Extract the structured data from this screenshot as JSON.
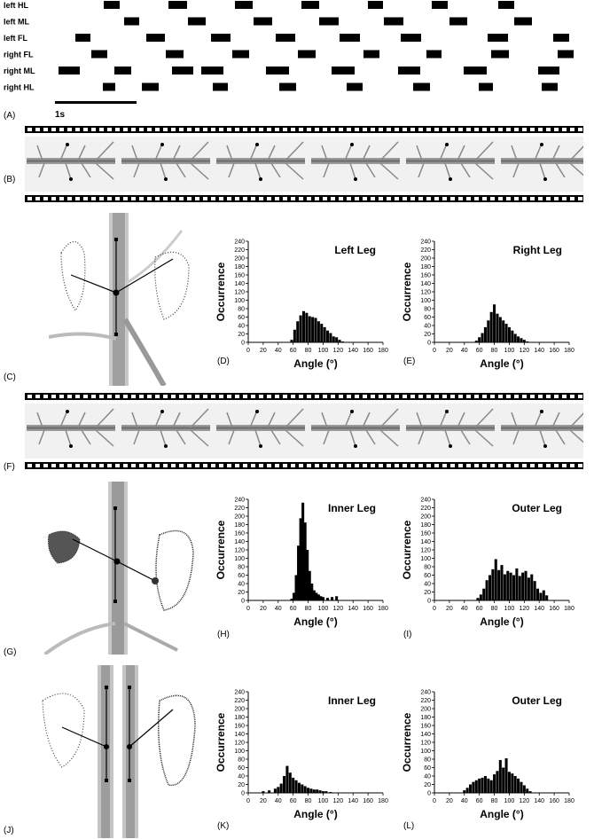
{
  "panels": {
    "A": "(A)",
    "B": "(B)",
    "C": "(C)",
    "D": "(D)",
    "E": "(E)",
    "F": "(F)",
    "G": "(G)",
    "H": "(H)",
    "I": "(I)",
    "J": "(J)",
    "K": "(K)",
    "L": "(L)"
  },
  "gait": {
    "rows": [
      {
        "label": "left HL",
        "bars": [
          [
            117,
            135
          ],
          [
            190,
            211
          ],
          [
            265,
            285
          ],
          [
            340,
            360
          ],
          [
            415,
            432
          ],
          [
            487,
            505
          ],
          [
            562,
            580
          ]
        ]
      },
      {
        "label": "left ML",
        "bars": [
          [
            140,
            157
          ],
          [
            212,
            232
          ],
          [
            286,
            307
          ],
          [
            360,
            382
          ],
          [
            433,
            455
          ],
          [
            507,
            527
          ],
          [
            580,
            600
          ]
        ]
      },
      {
        "label": "left FL",
        "bars": [
          [
            85,
            102
          ],
          [
            165,
            186
          ],
          [
            238,
            260
          ],
          [
            311,
            333
          ],
          [
            383,
            406
          ],
          [
            452,
            475
          ],
          [
            550,
            573
          ],
          [
            624,
            642
          ]
        ]
      },
      {
        "label": "right FL",
        "bars": [
          [
            103,
            121
          ],
          [
            187,
            207
          ],
          [
            262,
            281
          ],
          [
            336,
            356
          ],
          [
            410,
            428
          ],
          [
            481,
            498
          ],
          [
            554,
            574
          ],
          [
            629,
            647
          ]
        ]
      },
      {
        "label": "right ML",
        "bars": [
          [
            66,
            90
          ],
          [
            129,
            148
          ],
          [
            194,
            218
          ],
          [
            227,
            252
          ],
          [
            300,
            326
          ],
          [
            374,
            400
          ],
          [
            449,
            474
          ],
          [
            523,
            549
          ],
          [
            607,
            631
          ]
        ]
      },
      {
        "label": "right HL",
        "bars": [
          [
            116,
            130
          ],
          [
            160,
            179
          ],
          [
            240,
            257
          ],
          [
            315,
            334
          ],
          [
            391,
            409
          ],
          [
            466,
            485
          ],
          [
            540,
            556
          ],
          [
            611,
            629
          ]
        ]
      }
    ],
    "scale_label": "1s"
  },
  "chart_data": [
    {
      "id": "D",
      "type": "bar",
      "title": "Left Leg",
      "xlabel": "Angle (°)",
      "ylabel": "Occurrence",
      "xlim": [
        0,
        180
      ],
      "ylim": [
        0,
        240
      ],
      "xticks": [
        "0",
        "20",
        "40",
        "60",
        "80",
        "100",
        "120",
        "140",
        "160",
        "180"
      ],
      "yticks": [
        "0",
        "20",
        "40",
        "60",
        "80",
        "100",
        "120",
        "140",
        "160",
        "180",
        "200",
        "220",
        "240"
      ],
      "x": [
        58,
        62,
        66,
        70,
        74,
        78,
        82,
        86,
        90,
        94,
        98,
        102,
        106,
        110,
        114,
        118,
        122,
        126
      ],
      "values": [
        6,
        30,
        50,
        64,
        74,
        70,
        62,
        60,
        58,
        50,
        44,
        36,
        28,
        22,
        14,
        12,
        6,
        2
      ]
    },
    {
      "id": "E",
      "type": "bar",
      "title": "Right Leg",
      "xlabel": "Angle (°)",
      "ylabel": "Occurrence",
      "xlim": [
        0,
        180
      ],
      "ylim": [
        0,
        240
      ],
      "xticks": [
        "0",
        "20",
        "40",
        "60",
        "80",
        "100",
        "120",
        "140",
        "160",
        "180"
      ],
      "yticks": [
        "0",
        "20",
        "40",
        "60",
        "80",
        "100",
        "120",
        "140",
        "160",
        "180",
        "200",
        "220",
        "240"
      ],
      "x": [
        56,
        60,
        64,
        68,
        72,
        76,
        80,
        84,
        88,
        92,
        96,
        100,
        104,
        108,
        112,
        116,
        120,
        124
      ],
      "values": [
        4,
        12,
        22,
        36,
        52,
        72,
        90,
        68,
        60,
        52,
        44,
        36,
        28,
        20,
        14,
        10,
        6,
        2
      ]
    },
    {
      "id": "H",
      "type": "bar",
      "title": "Inner Leg",
      "xlabel": "Angle (°)",
      "ylabel": "Occurrence",
      "xlim": [
        0,
        180
      ],
      "ylim": [
        0,
        240
      ],
      "xticks": [
        "0",
        "20",
        "40",
        "60",
        "80",
        "100",
        "120",
        "140",
        "160",
        "180"
      ],
      "yticks": [
        "0",
        "20",
        "40",
        "60",
        "80",
        "100",
        "120",
        "140",
        "160",
        "180",
        "200",
        "220",
        "240"
      ],
      "x": [
        58,
        61,
        64,
        67,
        70,
        73,
        76,
        79,
        82,
        85,
        88,
        91,
        94,
        97,
        100,
        106,
        112,
        118
      ],
      "values": [
        4,
        18,
        60,
        130,
        195,
        232,
        185,
        120,
        70,
        40,
        24,
        18,
        14,
        10,
        8,
        6,
        8,
        10
      ]
    },
    {
      "id": "I",
      "type": "bar",
      "title": "Outer Leg",
      "xlabel": "Angle (°)",
      "ylabel": "Occurrence",
      "xlim": [
        0,
        180
      ],
      "ylim": [
        0,
        240
      ],
      "xticks": [
        "0",
        "20",
        "40",
        "60",
        "80",
        "100",
        "120",
        "140",
        "160",
        "180"
      ],
      "yticks": [
        "0",
        "20",
        "40",
        "60",
        "80",
        "100",
        "120",
        "140",
        "160",
        "180",
        "200",
        "220",
        "240"
      ],
      "x": [
        58,
        62,
        66,
        70,
        74,
        78,
        82,
        86,
        90,
        94,
        98,
        102,
        106,
        110,
        114,
        118,
        122,
        126,
        130,
        134,
        138,
        142,
        146,
        150
      ],
      "values": [
        6,
        14,
        28,
        48,
        60,
        74,
        98,
        72,
        84,
        62,
        70,
        66,
        60,
        76,
        58,
        66,
        70,
        54,
        62,
        46,
        28,
        18,
        24,
        12
      ]
    },
    {
      "id": "K",
      "type": "bar",
      "title": "Inner Leg",
      "xlabel": "Angle (°)",
      "ylabel": "Occurrence",
      "xlim": [
        0,
        180
      ],
      "ylim": [
        0,
        240
      ],
      "xticks": [
        "0",
        "20",
        "40",
        "60",
        "80",
        "100",
        "120",
        "140",
        "160",
        "180"
      ],
      "yticks": [
        "0",
        "20",
        "40",
        "60",
        "80",
        "100",
        "120",
        "140",
        "160",
        "180",
        "200",
        "220",
        "240"
      ],
      "x": [
        20,
        28,
        36,
        40,
        44,
        48,
        52,
        56,
        60,
        64,
        68,
        72,
        76,
        80,
        84,
        88,
        92,
        96,
        100,
        104,
        110
      ],
      "values": [
        4,
        6,
        10,
        14,
        22,
        40,
        64,
        48,
        36,
        30,
        24,
        20,
        16,
        12,
        10,
        8,
        8,
        6,
        4,
        4,
        2
      ]
    },
    {
      "id": "L",
      "type": "bar",
      "title": "Outer Leg",
      "xlabel": "Angle (°)",
      "ylabel": "Occurrence",
      "xlim": [
        0,
        180
      ],
      "ylim": [
        0,
        240
      ],
      "xticks": [
        "0",
        "20",
        "40",
        "60",
        "80",
        "100",
        "120",
        "140",
        "160",
        "180"
      ],
      "yticks": [
        "0",
        "20",
        "40",
        "60",
        "80",
        "100",
        "120",
        "140",
        "160",
        "180",
        "200",
        "220",
        "240"
      ],
      "x": [
        40,
        44,
        48,
        52,
        56,
        60,
        64,
        68,
        72,
        76,
        80,
        84,
        88,
        92,
        96,
        100,
        104,
        108,
        112,
        116,
        120,
        124,
        128
      ],
      "values": [
        6,
        12,
        20,
        26,
        30,
        34,
        36,
        40,
        34,
        30,
        44,
        52,
        78,
        60,
        82,
        50,
        46,
        40,
        34,
        26,
        18,
        10,
        4
      ]
    }
  ]
}
